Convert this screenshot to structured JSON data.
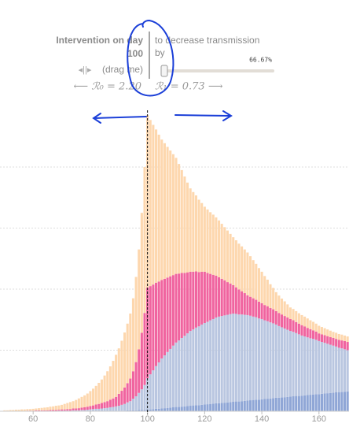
{
  "chart_data": {
    "type": "stacked-bar",
    "x": [
      50,
      51,
      52,
      53,
      54,
      55,
      56,
      57,
      58,
      59,
      60,
      61,
      62,
      63,
      64,
      65,
      66,
      67,
      68,
      69,
      70,
      71,
      72,
      73,
      74,
      75,
      76,
      77,
      78,
      79,
      80,
      81,
      82,
      83,
      84,
      85,
      86,
      87,
      88,
      89,
      90,
      91,
      92,
      93,
      94,
      95,
      96,
      97,
      98,
      99,
      100,
      101,
      102,
      103,
      104,
      105,
      106,
      107,
      108,
      109,
      110,
      111,
      112,
      113,
      114,
      115,
      116,
      117,
      118,
      119,
      120,
      121,
      122,
      123,
      124,
      125,
      126,
      127,
      128,
      129,
      130,
      131,
      132,
      133,
      134,
      135,
      136,
      137,
      138,
      139,
      140,
      141,
      142,
      143,
      144,
      145,
      146,
      147,
      148,
      149,
      150,
      151,
      152,
      153,
      154,
      155,
      156,
      157,
      158,
      159,
      160,
      161,
      162,
      163,
      164,
      165,
      166,
      167,
      168,
      169,
      170
    ],
    "series": [
      {
        "color": "#8fa6d6",
        "values": [
          0,
          0,
          0,
          0,
          0,
          0,
          0,
          0,
          0,
          0,
          0,
          0,
          0,
          0,
          0,
          0,
          0,
          0,
          0,
          0,
          0,
          0,
          0,
          0,
          0,
          0,
          0,
          0,
          0,
          0,
          0.1,
          0.1,
          0.1,
          0.1,
          0.1,
          0.1,
          0.1,
          0.1,
          0.1,
          0.1,
          0.2,
          0.2,
          0.2,
          0.3,
          0.3,
          0.3,
          0.3,
          0.4,
          0.4,
          0.4,
          0.5,
          0.6,
          0.7,
          0.8,
          0.8,
          0.9,
          1.0,
          1.1,
          1.2,
          1.3,
          1.4,
          1.4,
          1.5,
          1.6,
          1.7,
          1.8,
          1.9,
          2.0,
          2.0,
          2.1,
          2.2,
          2.3,
          2.4,
          2.5,
          2.6,
          2.6,
          2.7,
          2.8,
          2.9,
          3.0,
          3.1,
          3.2,
          3.2,
          3.3,
          3.4,
          3.5,
          3.6,
          3.7,
          3.8,
          3.8,
          3.9,
          4.0,
          4.1,
          4.2,
          4.3,
          4.4,
          4.4,
          4.5,
          4.6,
          4.7,
          4.8,
          4.9,
          5.0,
          5.0,
          5.1,
          5.2,
          5.3,
          5.4,
          5.5,
          5.6,
          5.6,
          5.7,
          5.8,
          5.9,
          6.0,
          6.1,
          6.2,
          6.2,
          6.3,
          6.4,
          6.5
        ]
      },
      {
        "color": "#b9c6e0",
        "values": [
          0,
          0,
          0,
          0,
          0,
          0,
          0,
          0,
          0.1,
          0.1,
          0.1,
          0.1,
          0.1,
          0.1,
          0.1,
          0.1,
          0.1,
          0.1,
          0.1,
          0.2,
          0.2,
          0.2,
          0.2,
          0.2,
          0.3,
          0.3,
          0.3,
          0.4,
          0.4,
          0.5,
          0.5,
          0.6,
          0.7,
          0.7,
          0.8,
          0.9,
          1.0,
          1.2,
          1.3,
          1.5,
          1.6,
          1.9,
          2.2,
          2.6,
          3.0,
          3.8,
          4.6,
          5.6,
          6.8,
          8.2,
          10.3,
          11.5,
          12.7,
          14.0,
          15.2,
          16.4,
          17.3,
          18.3,
          19.2,
          20.2,
          21.1,
          21.8,
          22.5,
          23.1,
          23.8,
          24.5,
          24.9,
          25.4,
          25.8,
          26.3,
          26.7,
          27.0,
          27.4,
          27.7,
          28.1,
          28.4,
          28.5,
          28.6,
          28.7,
          28.8,
          28.9,
          28.7,
          28.5,
          28.4,
          28.2,
          28.0,
          27.7,
          27.3,
          27.0,
          26.6,
          26.3,
          25.8,
          25.4,
          24.9,
          24.5,
          24.0,
          23.5,
          23.0,
          22.5,
          22.0,
          21.5,
          21.1,
          20.6,
          20.2,
          19.7,
          19.3,
          18.9,
          18.5,
          18.2,
          17.8,
          17.4,
          17.0,
          16.6,
          16.2,
          15.8,
          15.4,
          15.0,
          14.6,
          14.3,
          13.9,
          13.5
        ]
      },
      {
        "color": "#f0649f",
        "values": [
          0.1,
          0.1,
          0.1,
          0.1,
          0.1,
          0.1,
          0.1,
          0.1,
          0.1,
          0.1,
          0.1,
          0.2,
          0.2,
          0.2,
          0.2,
          0.2,
          0.3,
          0.3,
          0.3,
          0.3,
          0.4,
          0.4,
          0.5,
          0.5,
          0.6,
          0.6,
          0.7,
          0.8,
          0.9,
          1.0,
          1.1,
          1.2,
          1.4,
          1.6,
          1.8,
          2.0,
          2.2,
          2.5,
          2.8,
          3.1,
          3.9,
          4.6,
          5.4,
          6.3,
          7.4,
          9.0,
          11.2,
          14.3,
          18.5,
          23.6,
          29.7,
          28.9,
          28.1,
          27.3,
          26.5,
          25.7,
          25.1,
          24.4,
          23.8,
          23.1,
          22.5,
          21.9,
          21.3,
          20.6,
          20.0,
          19.4,
          18.9,
          18.4,
          17.8,
          17.3,
          16.8,
          16.0,
          15.2,
          14.5,
          13.7,
          12.9,
          12.2,
          11.5,
          10.7,
          10.0,
          9.3,
          8.7,
          8.2,
          7.6,
          7.1,
          6.5,
          6.2,
          6.0,
          5.7,
          5.5,
          5.2,
          5.0,
          4.9,
          4.7,
          4.6,
          4.4,
          4.3,
          4.2,
          4.1,
          4.0,
          3.9,
          3.8,
          3.6,
          3.5,
          3.4,
          3.3,
          3.1,
          3.0,
          2.8,
          2.7,
          2.5,
          2.5,
          2.5,
          2.5,
          2.5,
          2.5,
          2.5,
          2.6,
          2.6,
          2.7,
          2.7
        ]
      },
      {
        "color": "#fdd7ae",
        "values": [
          0.2,
          0.2,
          0.3,
          0.3,
          0.4,
          0.4,
          0.5,
          0.5,
          0.5,
          0.5,
          0.6,
          0.6,
          0.7,
          0.8,
          0.9,
          1.0,
          1.1,
          1.2,
          1.4,
          1.4,
          1.5,
          1.8,
          2.0,
          2.3,
          2.4,
          2.8,
          3.2,
          3.5,
          3.9,
          4.3,
          4.9,
          5.5,
          6.1,
          6.9,
          7.7,
          8.7,
          9.8,
          10.9,
          12.3,
          13.8,
          14.9,
          16.4,
          18.0,
          19.5,
          21.3,
          23.9,
          27.9,
          32.7,
          39.3,
          47.8,
          56.5,
          54.4,
          52.3,
          50.2,
          48.1,
          46.0,
          44.4,
          42.8,
          41.2,
          39.6,
          38.0,
          35.9,
          33.7,
          31.6,
          29.4,
          27.3,
          26.1,
          24.9,
          23.7,
          22.5,
          21.3,
          20.8,
          20.2,
          19.7,
          19.1,
          18.6,
          18.0,
          17.4,
          16.9,
          16.3,
          15.7,
          15.4,
          15.0,
          14.7,
          14.3,
          14.0,
          13.3,
          12.5,
          11.8,
          11.0,
          10.3,
          9.5,
          8.7,
          7.8,
          7.0,
          6.2,
          5.7,
          5.2,
          4.8,
          4.3,
          3.8,
          3.7,
          3.6,
          3.4,
          3.3,
          3.2,
          3.1,
          2.9,
          2.8,
          2.6,
          2.5,
          2.4,
          2.3,
          2.2,
          2.1,
          2.0,
          2.0,
          1.9,
          1.9,
          1.8,
          1.8
        ]
      }
    ],
    "xlim": [
      48.4,
      170.5
    ],
    "xticks": [
      60,
      80,
      100,
      120,
      140,
      160
    ],
    "ylim": [
      0,
      100
    ],
    "yticks": [
      20,
      40,
      60,
      80
    ],
    "grid": true
  },
  "controls": {
    "intervention_label": "Intervention on day",
    "intervention_day": 100,
    "decrease_label_1": "to decrease transmission",
    "decrease_label_2": "by",
    "decrease": {
      "value": 66.67,
      "label": "66.67%"
    },
    "drag_label": "(drag me)",
    "r0_label": "⟵ ℛ₀ = 2.20",
    "r1_label": "ℛ₁ = 0.73 ⟶"
  }
}
